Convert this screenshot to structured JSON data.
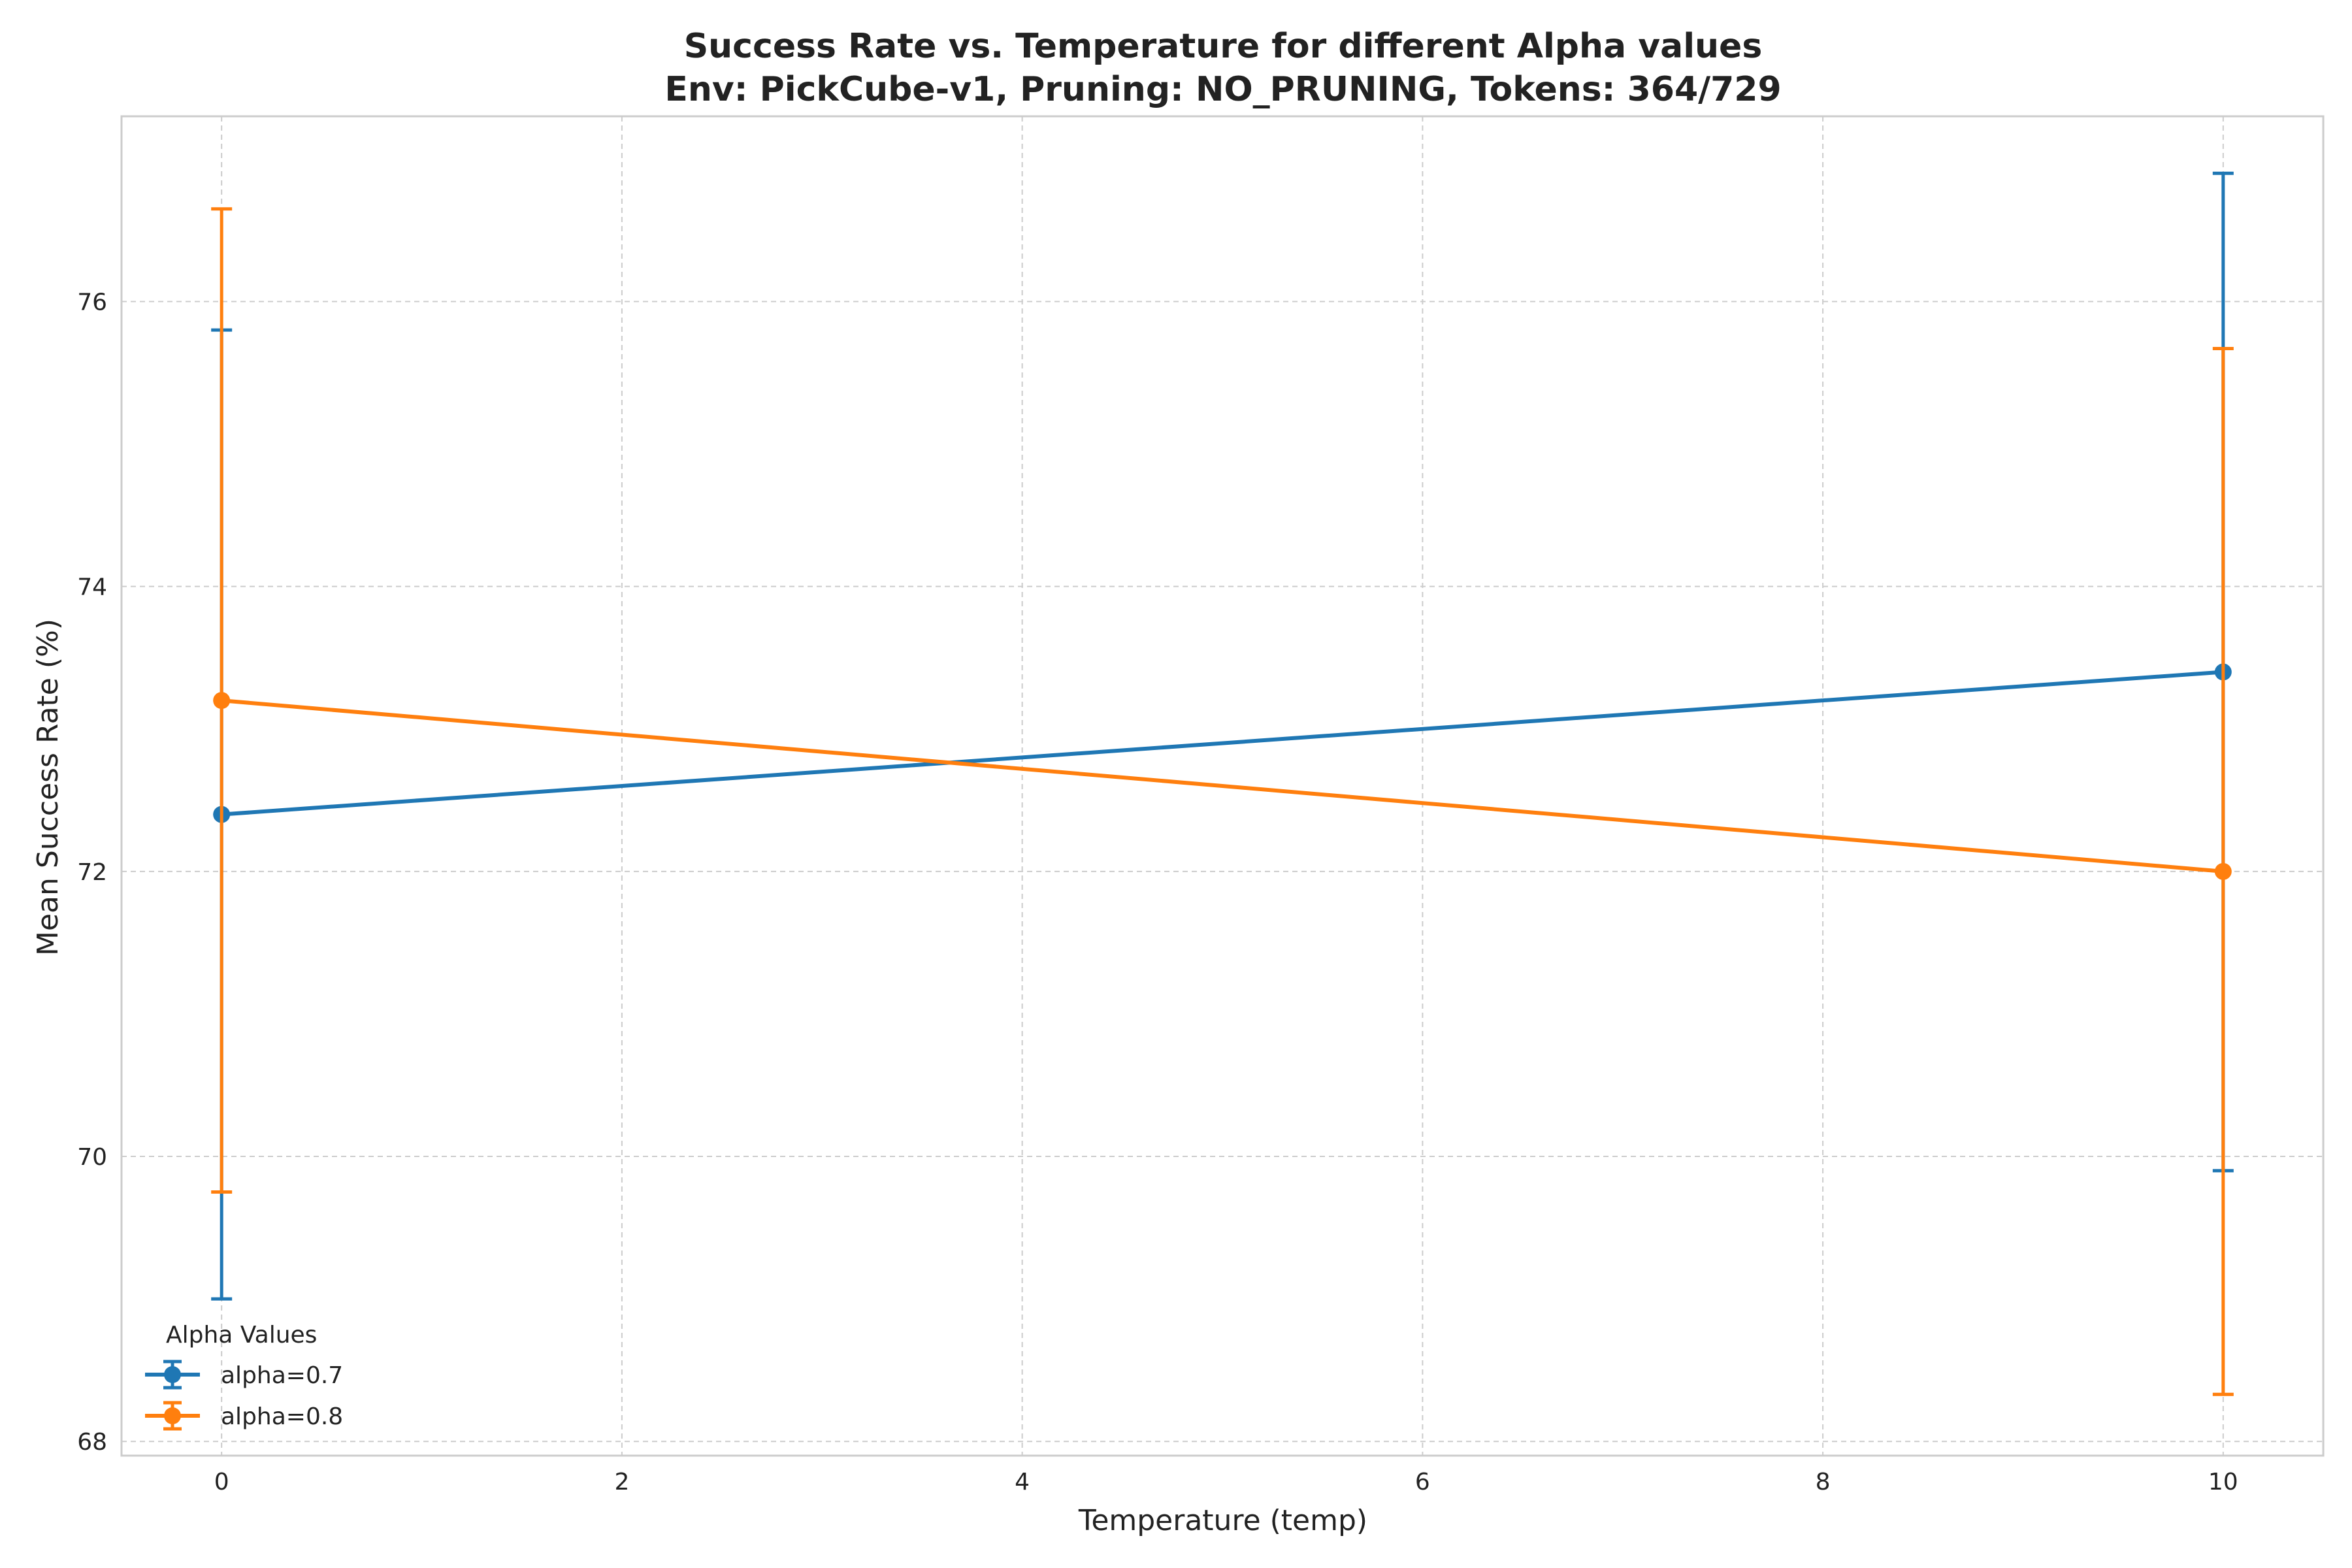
{
  "chart_data": {
    "type": "line",
    "title": "Success Rate vs. Temperature for different Alpha values",
    "subtitle": "Env: PickCube-v1, Pruning: NO_PRUNING, Tokens: 364/729",
    "xlabel": "Temperature (temp)",
    "ylabel": "Mean Success Rate (%)",
    "xlim": [
      -0.5,
      10.5
    ],
    "ylim": [
      67.9,
      77.3
    ],
    "xticks": [
      0,
      2,
      4,
      6,
      8,
      10
    ],
    "yticks": [
      68,
      70,
      72,
      74,
      76
    ],
    "grid": true,
    "legend": {
      "title": "Alpha Values",
      "placement": "lower-left"
    },
    "series": [
      {
        "name": "alpha=0.7",
        "color": "#1f77b4",
        "x": [
          0,
          10
        ],
        "y": [
          72.4,
          73.4
        ],
        "err_low": [
          69.0,
          69.9
        ],
        "err_high": [
          75.8,
          76.9
        ]
      },
      {
        "name": "alpha=0.8",
        "color": "#ff7f0e",
        "x": [
          0,
          10
        ],
        "y": [
          73.2,
          72.0
        ],
        "err_low": [
          69.75,
          68.33
        ],
        "err_high": [
          76.65,
          75.67
        ]
      }
    ]
  }
}
